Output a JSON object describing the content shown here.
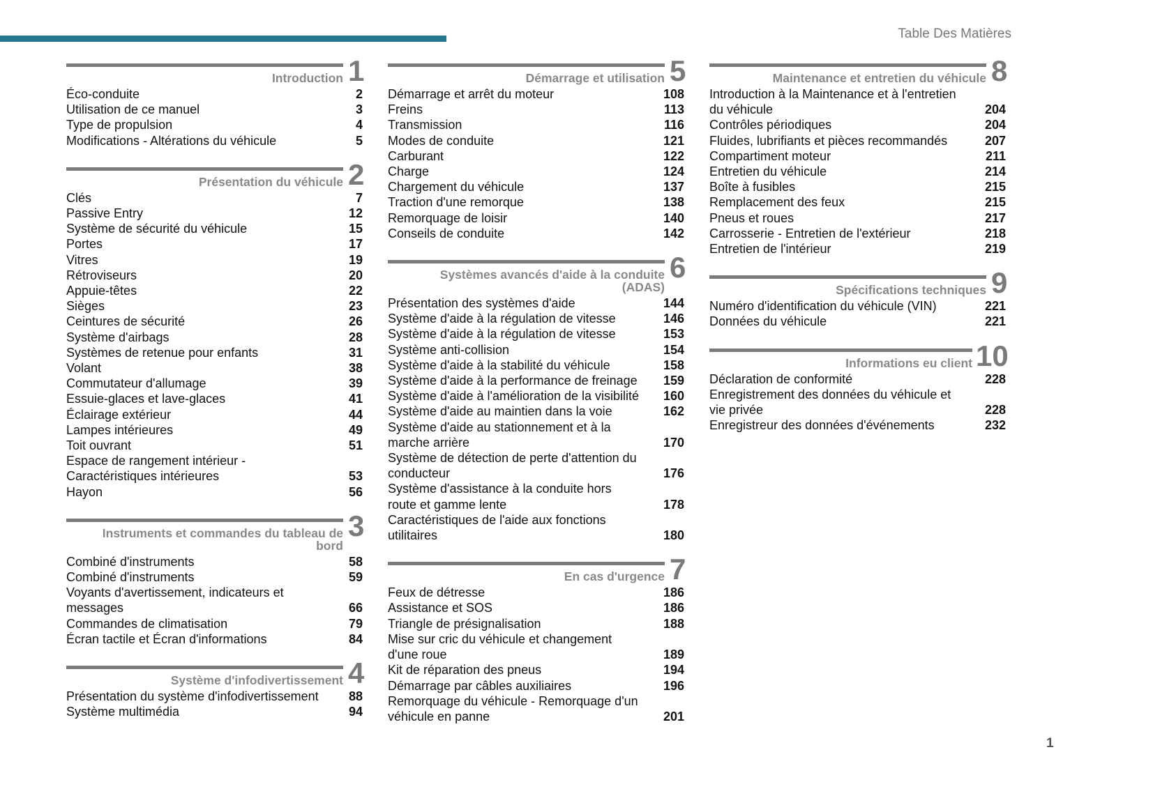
{
  "header": {
    "title": "Table Des Matières",
    "accent_color": "#22778f"
  },
  "footer": {
    "page_number": "1"
  },
  "sections": [
    {
      "number": "1",
      "title": "Introduction",
      "entries": [
        {
          "text": "Éco-conduite",
          "page": "2"
        },
        {
          "text": "Utilisation de ce manuel",
          "page": "3"
        },
        {
          "text": "Type de propulsion",
          "page": "4"
        },
        {
          "text": "Modifications - Altérations du véhicule",
          "page": "5"
        }
      ]
    },
    {
      "number": "2",
      "title": "Présentation du véhicule",
      "entries": [
        {
          "text": "Clés",
          "page": "7"
        },
        {
          "text": "Passive Entry",
          "page": "12"
        },
        {
          "text": "Système de sécurité du véhicule",
          "page": "15"
        },
        {
          "text": "Portes",
          "page": "17"
        },
        {
          "text": "Vitres",
          "page": "19"
        },
        {
          "text": "Rétroviseurs",
          "page": "20"
        },
        {
          "text": "Appuie-têtes",
          "page": "22"
        },
        {
          "text": "Sièges",
          "page": "23"
        },
        {
          "text": "Ceintures de sécurité",
          "page": "26"
        },
        {
          "text": "Système d'airbags",
          "page": "28"
        },
        {
          "text": "Systèmes de retenue pour enfants",
          "page": "31"
        },
        {
          "text": "Volant",
          "page": "38"
        },
        {
          "text": "Commutateur d'allumage",
          "page": "39"
        },
        {
          "text": "Essuie-glaces et lave-glaces",
          "page": "41"
        },
        {
          "text": "Éclairage extérieur",
          "page": "44"
        },
        {
          "text": "Lampes intérieures",
          "page": "49"
        },
        {
          "text": "Toit ouvrant",
          "page": "51"
        },
        {
          "text": "Espace de rangement intérieur -\nCaractéristiques intérieures",
          "page": "53"
        },
        {
          "text": "Hayon",
          "page": "56"
        }
      ]
    },
    {
      "number": "3",
      "title": "Instruments et commandes du tableau de\nbord",
      "entries": [
        {
          "text": "Combiné d'instruments",
          "page": "58"
        },
        {
          "text": "Combiné d'instruments",
          "page": "59"
        },
        {
          "text": "Voyants d'avertissement, indicateurs et\nmessages",
          "page": "66"
        },
        {
          "text": "Commandes de climatisation",
          "page": "79"
        },
        {
          "text": "Écran tactile et Écran d'informations",
          "page": "84"
        }
      ]
    },
    {
      "number": "4",
      "title": "Système d'infodivertissement",
      "entries": [
        {
          "text": "Présentation du système d'infodivertissement",
          "page": "88"
        },
        {
          "text": "Système multimédia",
          "page": "94"
        }
      ]
    },
    {
      "number": "5",
      "title": "Démarrage et utilisation",
      "entries": [
        {
          "text": "Démarrage et arrêt du moteur",
          "page": "108"
        },
        {
          "text": "Freins",
          "page": "113"
        },
        {
          "text": "Transmission",
          "page": "116"
        },
        {
          "text": "Modes de conduite",
          "page": "121"
        },
        {
          "text": "Carburant",
          "page": "122"
        },
        {
          "text": "Charge",
          "page": "124"
        },
        {
          "text": "Chargement du véhicule",
          "page": "137"
        },
        {
          "text": "Traction d'une remorque",
          "page": "138"
        },
        {
          "text": "Remorquage de loisir",
          "page": "140"
        },
        {
          "text": "Conseils de conduite",
          "page": "142"
        }
      ]
    },
    {
      "number": "6",
      "title": "Systèmes avancés d'aide à la conduite\n(ADAS)",
      "entries": [
        {
          "text": "Présentation des systèmes d'aide",
          "page": "144"
        },
        {
          "text": "Système d'aide à la régulation de vitesse",
          "page": "146"
        },
        {
          "text": "Système d'aide à la régulation de vitesse",
          "page": "153"
        },
        {
          "text": "Système anti-collision",
          "page": "154"
        },
        {
          "text": "Système d'aide à la stabilité du véhicule",
          "page": "158"
        },
        {
          "text": "Système d'aide à la performance de freinage",
          "page": "159"
        },
        {
          "text": "Système d'aide à l'amélioration de la visibilité",
          "page": "160"
        },
        {
          "text": "Système d'aide au maintien dans la voie",
          "page": "162"
        },
        {
          "text": "Système d'aide au stationnement et à la\nmarche arrière",
          "page": "170"
        },
        {
          "text": "Système de détection de perte d'attention du\nconducteur",
          "page": "176"
        },
        {
          "text": "Système d'assistance à la conduite hors\nroute et gamme lente",
          "page": "178"
        },
        {
          "text": "Caractéristiques de l'aide aux fonctions\nutilitaires",
          "page": "180"
        }
      ]
    },
    {
      "number": "7",
      "title": "En cas d'urgence",
      "entries": [
        {
          "text": "Feux de détresse",
          "page": "186"
        },
        {
          "text": "Assistance et SOS",
          "page": "186"
        },
        {
          "text": "Triangle de présignalisation",
          "page": "188"
        },
        {
          "text": "Mise sur cric du véhicule et changement\nd'une roue",
          "page": "189"
        },
        {
          "text": "Kit de réparation des pneus",
          "page": "194"
        },
        {
          "text": "Démarrage par câbles auxiliaires",
          "page": "196"
        },
        {
          "text": "Remorquage du véhicule - Remorquage d'un\nvéhicule en panne",
          "page": "201"
        }
      ]
    },
    {
      "number": "8",
      "title": "Maintenance et entretien du véhicule",
      "entries": [
        {
          "text": "Introduction à la Maintenance et à l'entretien\ndu véhicule",
          "page": "204"
        },
        {
          "text": "Contrôles périodiques",
          "page": "204"
        },
        {
          "text": "Fluides, lubrifiants et pièces recommandés",
          "page": "207"
        },
        {
          "text": "Compartiment moteur",
          "page": "211"
        },
        {
          "text": "Entretien du véhicule",
          "page": "214"
        },
        {
          "text": "Boîte à fusibles",
          "page": "215"
        },
        {
          "text": "Remplacement des feux",
          "page": "215"
        },
        {
          "text": "Pneus et roues",
          "page": "217"
        },
        {
          "text": "Carrosserie - Entretien de l'extérieur",
          "page": "218"
        },
        {
          "text": "Entretien de l'intérieur",
          "page": "219"
        }
      ]
    },
    {
      "number": "9",
      "title": "Spécifications techniques",
      "entries": [
        {
          "text": "Numéro d'identification du véhicule (VIN)",
          "page": "221"
        },
        {
          "text": "Données du véhicule",
          "page": "221"
        }
      ]
    },
    {
      "number": "10",
      "title": "Informations eu client",
      "entries": [
        {
          "text": "Déclaration de conformité",
          "page": "228"
        },
        {
          "text": "Enregistrement des données du véhicule et\nvie privée",
          "page": "228"
        },
        {
          "text": "Enregistreur des données d'événements",
          "page": "232"
        }
      ]
    }
  ]
}
